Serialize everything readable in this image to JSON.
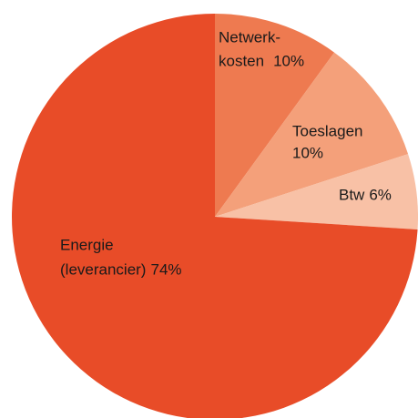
{
  "chart_data": {
    "type": "pie",
    "categories": [
      [
        "Netwerk-",
        "kosten"
      ],
      [
        "Toeslagen"
      ],
      [
        "Btw"
      ],
      [
        "Energie",
        "(leverancier)"
      ]
    ],
    "values": [
      10,
      10,
      6,
      74
    ],
    "value_labels": [
      "10%",
      "10%",
      "6%",
      "74%"
    ],
    "colors": [
      "#ee7a50",
      "#f4a07a",
      "#f8c1a6",
      "#e84c28"
    ]
  }
}
